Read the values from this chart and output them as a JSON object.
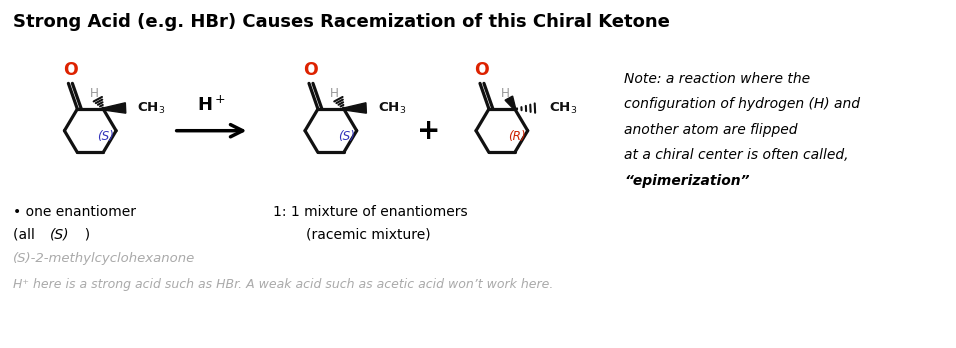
{
  "title": "Strong Acid (e.g. HBr) Causes Racemization of this Chiral Ketone",
  "title_fontsize": 13,
  "bg_color": "#ffffff",
  "note_lines": [
    "Note: a reaction where the",
    "configuration of hydrogen (H) and",
    "another atom are flipped",
    "at a chiral center is often called,"
  ],
  "note_bold_line": "“epimerization”",
  "label_one_enantiomer_line1": "• one enantiomer",
  "label_mixture_line1": "1: 1 mixture of enantiomers",
  "label_mixture_line2": "(racemic mixture)",
  "label_compound": "(S)-2-methylcyclohexanone",
  "label_footnote": "H⁺ here is a strong acid such as HBr. A weak acid such as acetic acid won’t work here.",
  "color_red": "#dd2200",
  "color_black": "#000000",
  "color_blue": "#3333bb",
  "color_orange_red": "#cc2200",
  "color_gray_h": "#999999",
  "color_bond": "#111111",
  "color_light_gray": "#aaaaaa"
}
